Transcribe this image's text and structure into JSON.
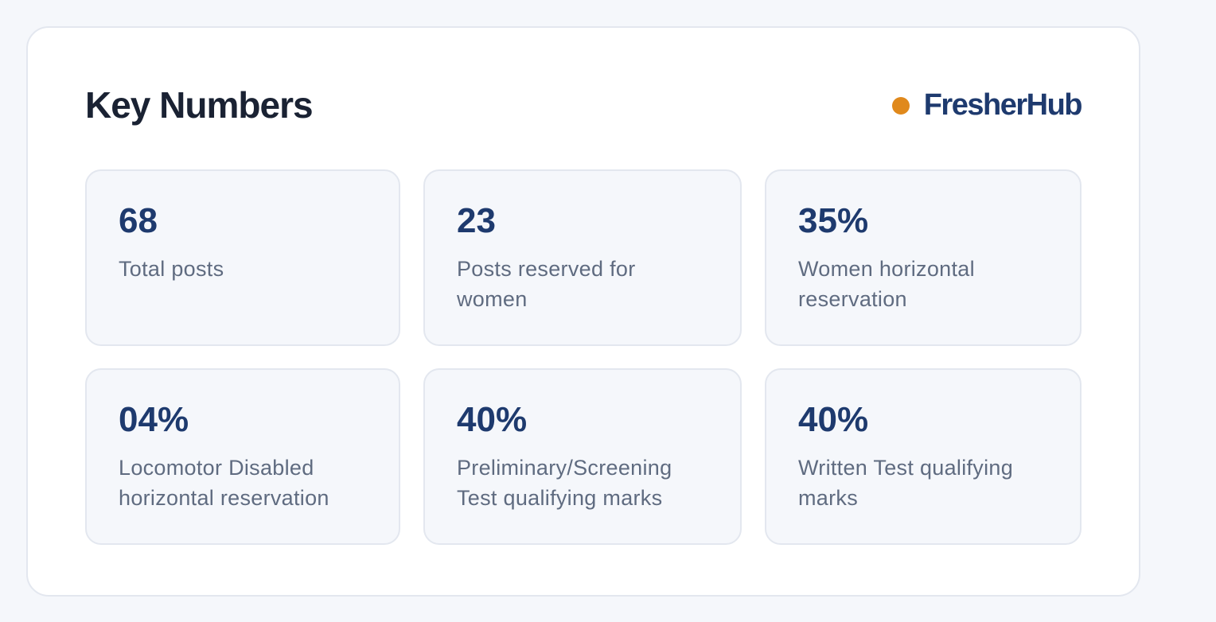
{
  "header": {
    "title": "Key Numbers",
    "brand": "FresherHub"
  },
  "stats": [
    {
      "value": "68",
      "label": "Total posts"
    },
    {
      "value": "23",
      "label": "Posts reserved for women"
    },
    {
      "value": "35%",
      "label": "Women horizontal reservation"
    },
    {
      "value": "04%",
      "label": "Locomotor Disabled horizontal reservation"
    },
    {
      "value": "40%",
      "label": "Preliminary/Screening Test qualifying marks"
    },
    {
      "value": "40%",
      "label": "Written Test qualifying marks"
    }
  ]
}
